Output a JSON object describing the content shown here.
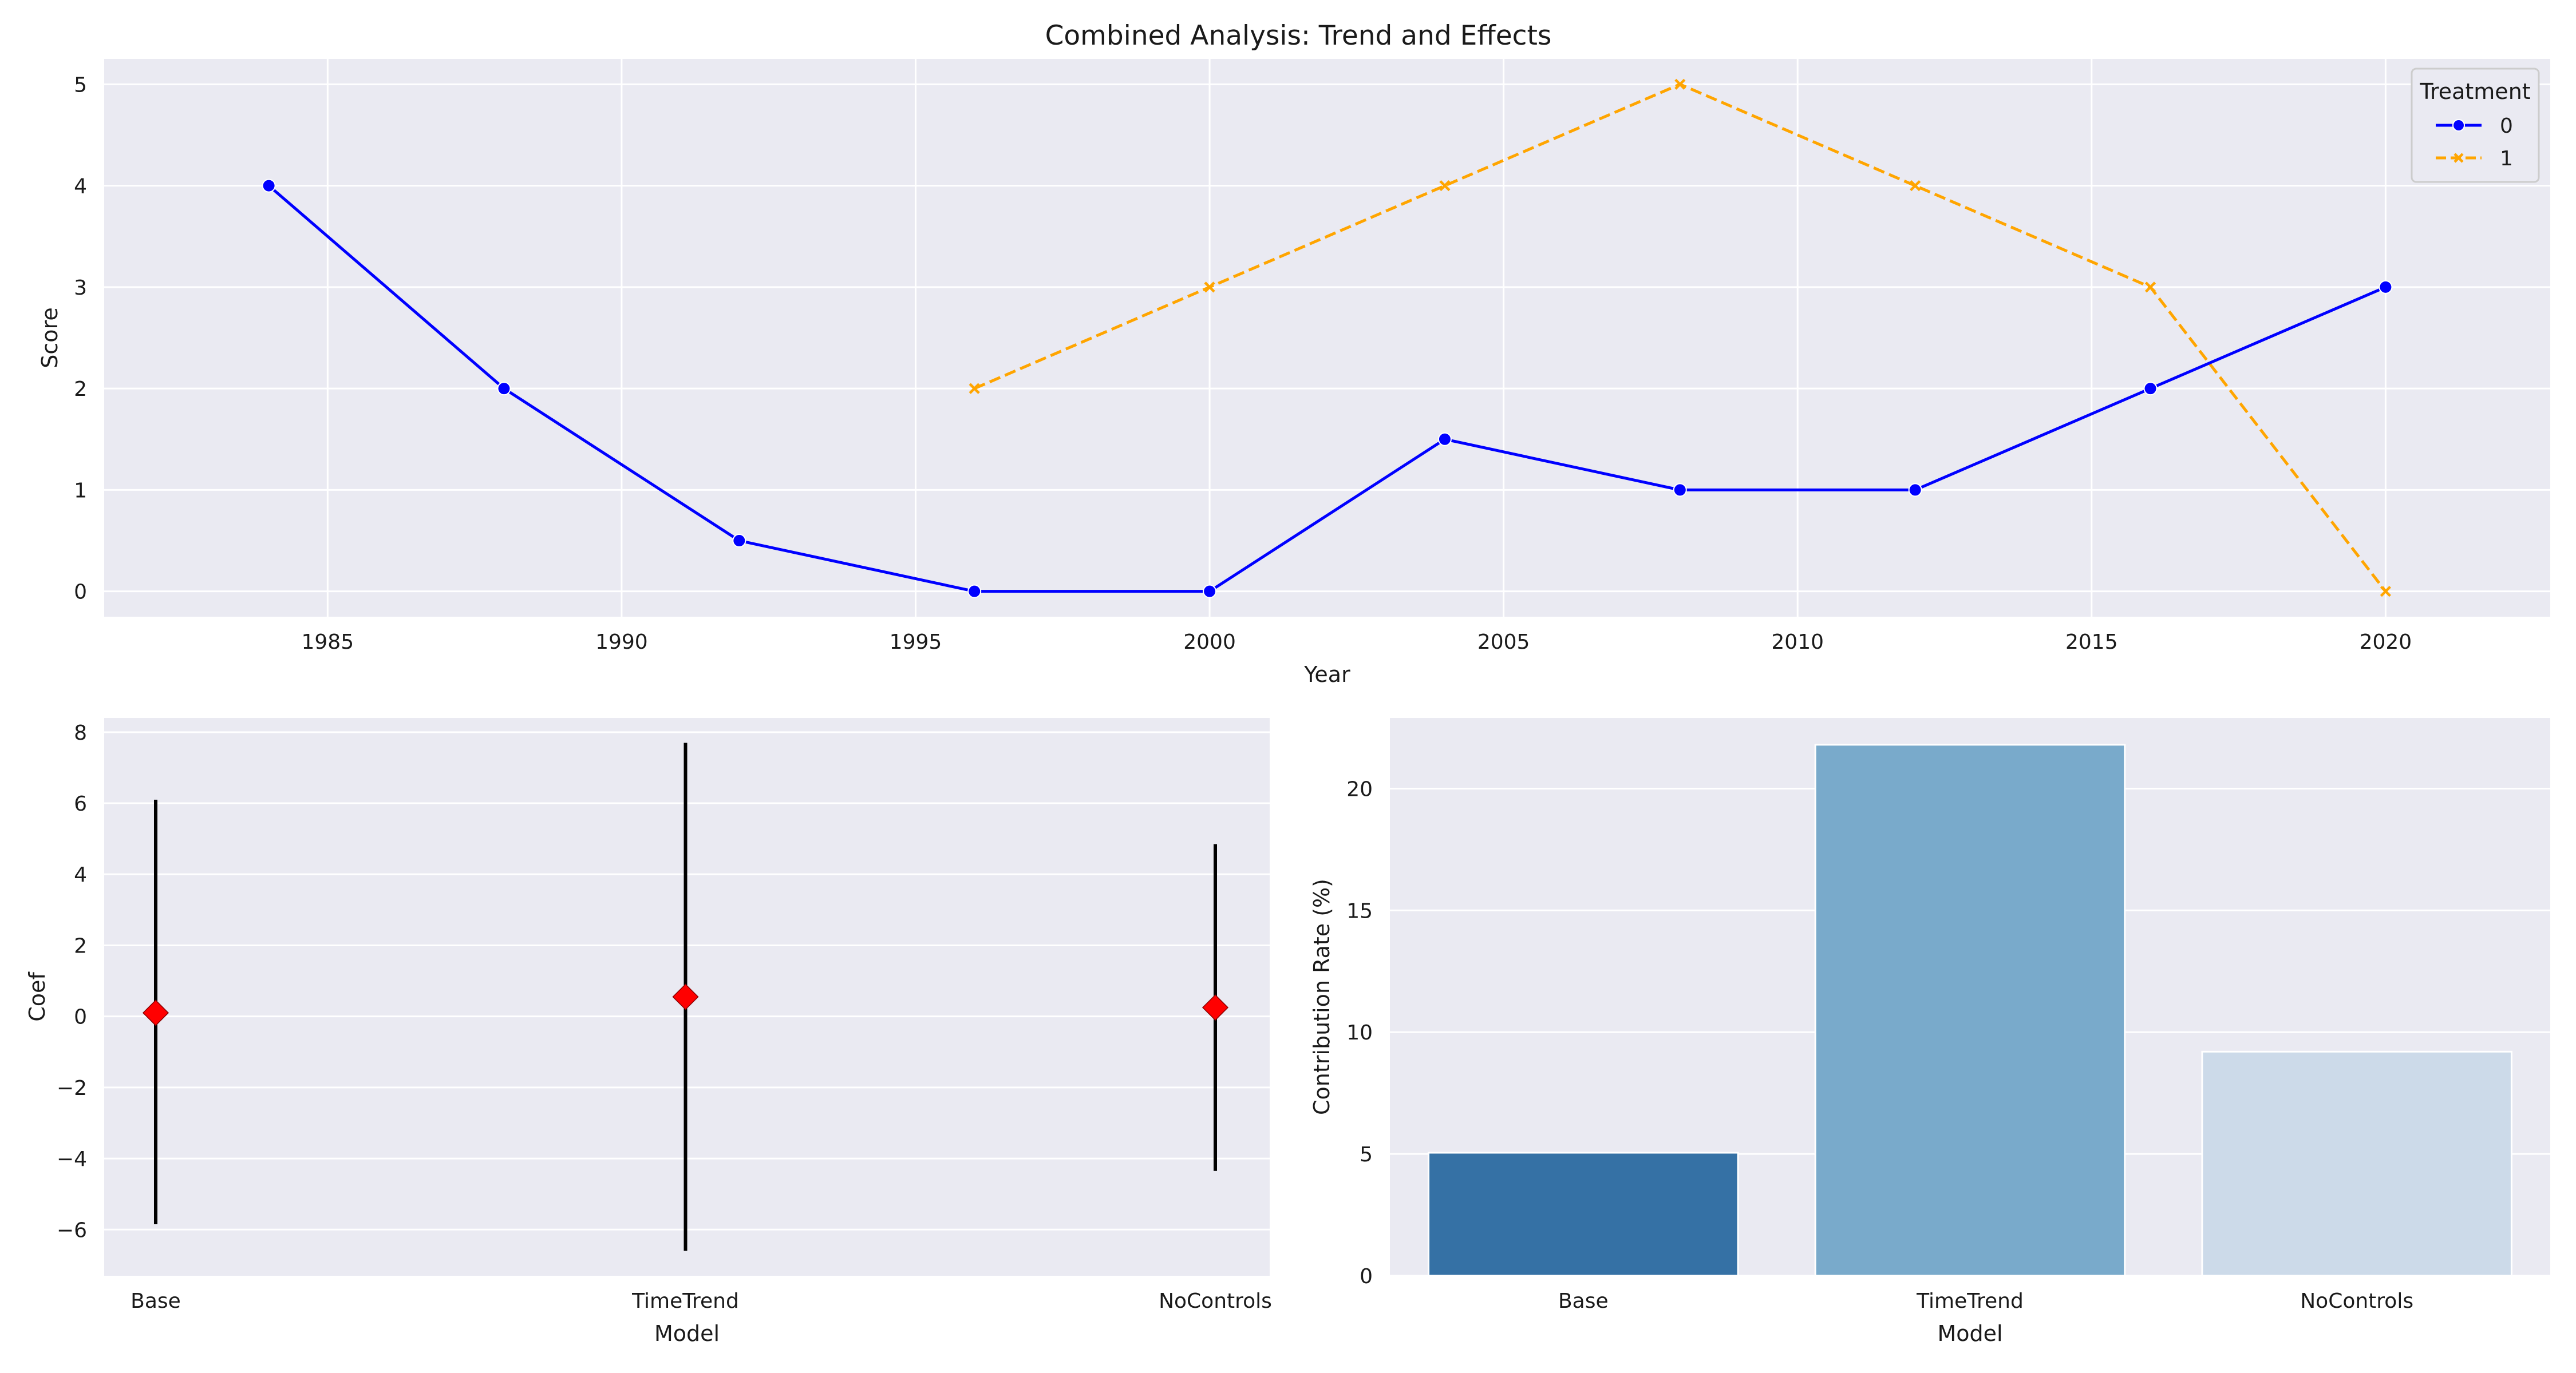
{
  "figure_title": "Combined Analysis: Trend and Effects",
  "colors": {
    "panel_bg": "#eaeaf2",
    "grid": "#ffffff",
    "series0": "#0000ff",
    "series1": "#ffa500",
    "coef_marker": "#ff0000",
    "ci_line": "#000000",
    "bars": [
      "#3571a5",
      "#79aacb",
      "#ccdae9"
    ]
  },
  "chart_data": [
    {
      "type": "line",
      "title": "Combined Analysis: Trend and Effects",
      "xlabel": "Year",
      "ylabel": "Score",
      "xlim": [
        1981.2,
        2022.8
      ],
      "ylim": [
        -0.25,
        5.25
      ],
      "xticks": [
        1985,
        1990,
        1995,
        2000,
        2005,
        2010,
        2015,
        2020
      ],
      "yticks": [
        0,
        1,
        2,
        3,
        4,
        5
      ],
      "grid": true,
      "legend": {
        "title": "Treatment",
        "placement": "top-right"
      },
      "series": [
        {
          "name": "0",
          "style": "solid",
          "marker": "circle",
          "x": [
            1984,
            1988,
            1992,
            1996,
            2000,
            2004,
            2008,
            2012,
            2016,
            2020
          ],
          "y": [
            4,
            2,
            0.5,
            0,
            0,
            1.5,
            1,
            1,
            2,
            3
          ]
        },
        {
          "name": "1",
          "style": "dashed",
          "marker": "x",
          "x": [
            1996,
            2000,
            2004,
            2008,
            2012,
            2016,
            2020
          ],
          "y": [
            2,
            3,
            4,
            5,
            4,
            3,
            0
          ]
        }
      ]
    },
    {
      "type": "scatter",
      "title": "",
      "xlabel": "Model",
      "ylabel": "Coef",
      "categories": [
        "Base",
        "TimeTrend",
        "NoControls"
      ],
      "values": [
        0.1,
        0.55,
        0.25
      ],
      "ci_low": [
        -5.85,
        -6.6,
        -4.35
      ],
      "ci_high": [
        6.1,
        7.7,
        4.85
      ],
      "ylim": [
        -7.3,
        8.4
      ],
      "yticks": [
        -6,
        -4,
        -2,
        0,
        2,
        4,
        6,
        8
      ],
      "ytick_labels": [
        "−6",
        "−4",
        "−2",
        "0",
        "2",
        "4",
        "6",
        "8"
      ],
      "grid": true
    },
    {
      "type": "bar",
      "title": "",
      "xlabel": "Model",
      "ylabel": "Contribution Rate (%)",
      "categories": [
        "Base",
        "TimeTrend",
        "NoControls"
      ],
      "values": [
        5.05,
        21.8,
        9.2
      ],
      "ylim": [
        0,
        22.9
      ],
      "yticks": [
        0,
        5,
        10,
        15,
        20
      ],
      "grid": true
    }
  ]
}
